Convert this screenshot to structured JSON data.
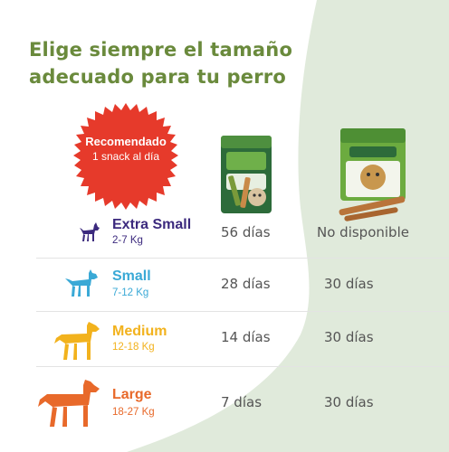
{
  "headline": {
    "line1": "Elige siempre el tamaño",
    "line2": "adecuado para tu perro"
  },
  "badge": {
    "line1": "Recomendado",
    "line2": "1 snack al día",
    "color": "#e63a2b"
  },
  "products": [
    {
      "name": "Whimzees pouch",
      "icon": "product-pouch"
    },
    {
      "name": "Whimzees box",
      "icon": "product-box"
    }
  ],
  "rows": [
    {
      "size": "Extra Small",
      "range": "2-7 Kg",
      "value1": "56 días",
      "value2": "No disponible",
      "color": "#3c2a7e"
    },
    {
      "size": "Small",
      "range": "7-12 Kg",
      "value1": "28 días",
      "value2": "30 días",
      "color": "#3aa9d6"
    },
    {
      "size": "Medium",
      "range": "12-18 Kg",
      "value1": "14 días",
      "value2": "30 días",
      "color": "#f2b21d"
    },
    {
      "size": "Large",
      "range": "18-27 Kg",
      "value1": "7 días",
      "value2": "30 días",
      "color": "#e8692a"
    }
  ],
  "colors": {
    "headline": "#6a8a3c",
    "background_shape": "#dfe9d2"
  }
}
